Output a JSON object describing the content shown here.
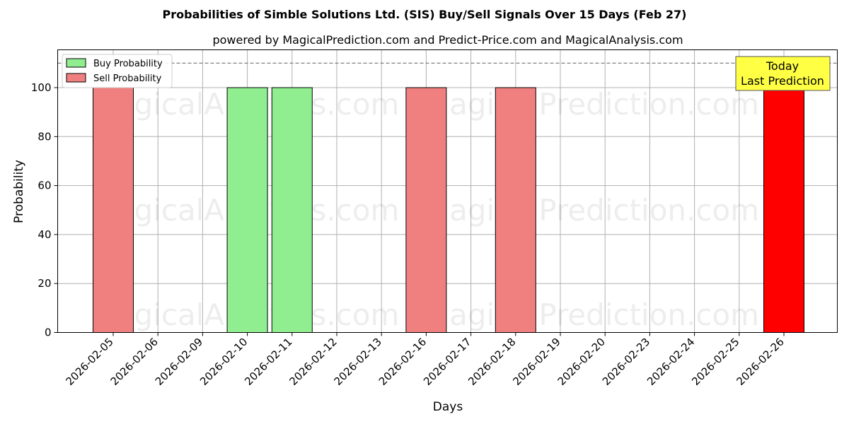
{
  "chart_data": {
    "type": "bar",
    "title": "Probabilities of Simble Solutions Ltd. (SIS) Buy/Sell Signals Over 15 Days (Feb 27)",
    "subtitle": "powered by MagicalPrediction.com and Predict-Price.com and MagicalAnalysis.com",
    "xlabel": "Days",
    "ylabel": "Probability",
    "ylim": [
      0,
      115
    ],
    "yticks": [
      0,
      20,
      40,
      60,
      80,
      100
    ],
    "grid": true,
    "legend_position": "top-left",
    "reference_line": 110,
    "categories": [
      "2026-02-05",
      "2026-02-06",
      "2026-02-09",
      "2026-02-10",
      "2026-02-11",
      "2026-02-12",
      "2026-02-13",
      "2026-02-16",
      "2026-02-17",
      "2026-02-18",
      "2026-02-19",
      "2026-02-20",
      "2026-02-23",
      "2026-02-24",
      "2026-02-25",
      "2026-02-26"
    ],
    "series": [
      {
        "name": "Buy Probability",
        "color": "#90ee90",
        "bars": [
          {
            "category": "2026-02-10",
            "value": 100
          },
          {
            "category": "2026-02-11",
            "value": 100
          }
        ]
      },
      {
        "name": "Sell Probability",
        "color": "#f08080",
        "bars": [
          {
            "category": "2026-02-05",
            "value": 100
          },
          {
            "category": "2026-02-16",
            "value": 100
          },
          {
            "category": "2026-02-18",
            "value": 100
          }
        ]
      }
    ],
    "today_bar": {
      "category": "2026-02-26",
      "value": 100,
      "color": "#ff0000"
    },
    "annotation": {
      "line1": "Today",
      "line2": "Last Prediction",
      "color": "#ffff44"
    },
    "watermarks": [
      "MagicalAnalysis.com",
      "Magica Prediction.com"
    ]
  }
}
